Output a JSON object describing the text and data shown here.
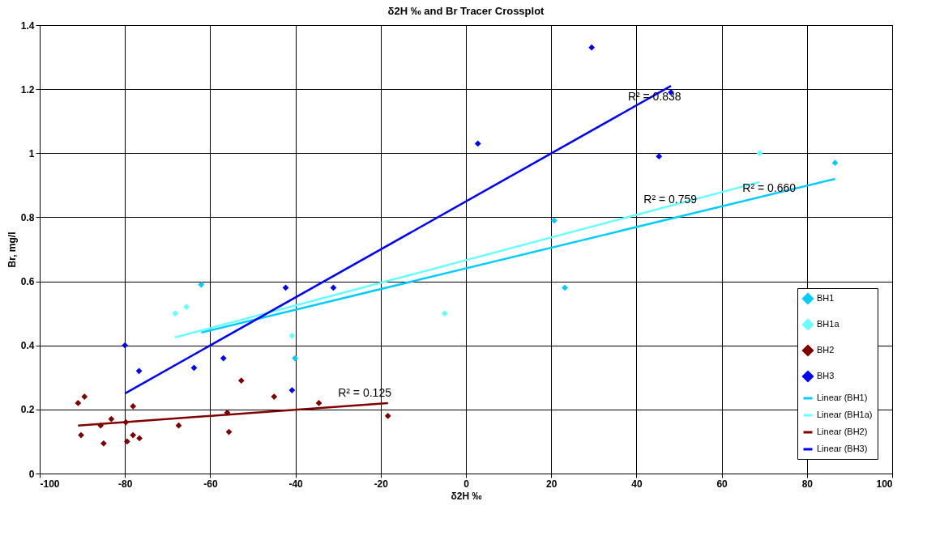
{
  "chart_data": {
    "type": "scatter",
    "title": "δ2H ‰ and Br Tracer Crossplot",
    "xlabel": "δ2H ‰",
    "ylabel": "Br, mg/l",
    "xlim": [
      -100,
      100
    ],
    "xticks": [
      -100,
      -80,
      -60,
      -40,
      -20,
      0,
      20,
      40,
      60,
      80,
      100
    ],
    "ylim": [
      0,
      1.4
    ],
    "yticks": [
      0,
      0.2,
      0.4,
      0.6,
      0.8,
      1,
      1.2,
      1.4
    ],
    "grid": true,
    "legend": "bottom right",
    "marker": "diamond",
    "series": [
      {
        "name": "BH1",
        "color": "#00ccff",
        "x": [
          -62.1,
          -40.1,
          20.7,
          23.2,
          86.6
        ],
        "values": [
          0.59,
          0.36,
          0.79,
          0.58,
          0.97
        ]
      },
      {
        "name": "BH1a",
        "color": "#66ffff",
        "x": [
          -68.2,
          -65.6,
          -40.8,
          -5,
          68.9
        ],
        "values": [
          0.5,
          0.52,
          0.43,
          0.5,
          1.0
        ]
      },
      {
        "name": "BH2",
        "color": "#800000",
        "x": [
          -91.0,
          -89.5,
          -90.3,
          -85.7,
          -85.0,
          -83.2,
          -79.8,
          -79.5,
          -78.1,
          -78.1,
          -76.6,
          -67.4,
          -52.7,
          -56.0,
          -55.6,
          -45.0,
          -34.5,
          -18.3
        ],
        "values": [
          0.22,
          0.24,
          0.12,
          0.15,
          0.094,
          0.17,
          0.16,
          0.1,
          0.21,
          0.12,
          0.11,
          0.15,
          0.29,
          0.19,
          0.13,
          0.24,
          0.22,
          0.18
        ]
      },
      {
        "name": "BH3",
        "color": "#0000ff",
        "x": [
          -80,
          -76.7,
          -63.8,
          -56.9,
          -42.3,
          -40.8,
          -31.1,
          2.8,
          29.5,
          45.3,
          48.1
        ],
        "values": [
          0.4,
          0.32,
          0.33,
          0.36,
          0.58,
          0.26,
          0.58,
          1.03,
          1.33,
          0.99,
          1.19
        ]
      },
      {
        "name": "Linear (BH1)",
        "type": "line",
        "marker": "none",
        "line_style": "solid",
        "color": "#00ccff",
        "x": [
          -62.1,
          86.6
        ],
        "values": [
          0.44,
          0.92
        ]
      },
      {
        "name": "Linear (BH1a)",
        "type": "line",
        "marker": "none",
        "line_style": "solid",
        "color": "#66ffff",
        "x": [
          -68.2,
          68.9
        ],
        "values": [
          0.425,
          0.91
        ]
      },
      {
        "name": "Linear (BH2)",
        "type": "line",
        "marker": "none",
        "line_style": "solid",
        "color": "#800000",
        "x": [
          -91.0,
          -18.3
        ],
        "values": [
          0.15,
          0.22
        ]
      },
      {
        "name": "Linear (BH3)",
        "type": "line",
        "marker": "none",
        "line_style": "solid",
        "color": "#0000ff",
        "x": [
          -80,
          48.1
        ],
        "values": [
          0.25,
          1.21
        ]
      }
    ],
    "annotations": [
      {
        "text": "R² = 0.838",
        "x": 38,
        "y": 1.134
      },
      {
        "text": "R² = 0.759",
        "x": 41.7,
        "y": 0.814
      },
      {
        "text": "R² = 0.660",
        "x": 64.9,
        "y": 0.85
      },
      {
        "text": "R² = 0.125",
        "x": -30,
        "y": 0.209
      }
    ]
  }
}
